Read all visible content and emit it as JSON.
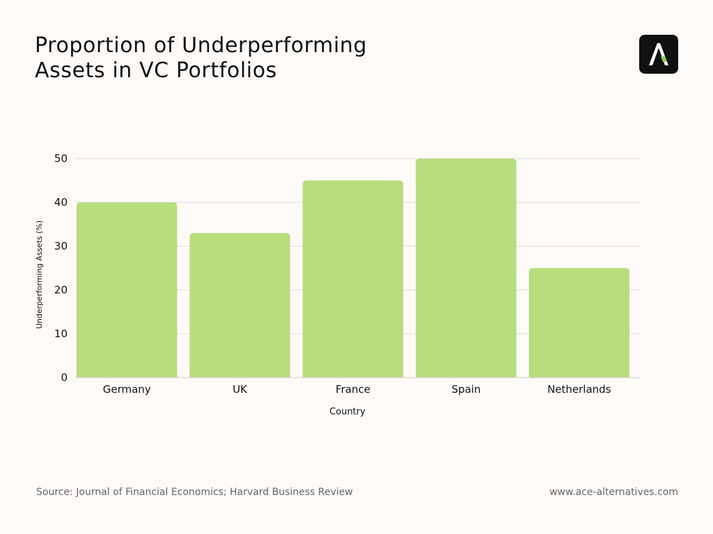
{
  "header": {
    "title_line1": "Proportion of Underperforming",
    "title_line2": "Assets in VC Portfolios",
    "logo_icon": "ace-alternatives-logo-icon"
  },
  "footer": {
    "source": "Source: Journal of Financial Economics; Harvard Business Review",
    "website": "www.ace-alternatives.com"
  },
  "colors": {
    "bar": "#b8dd7c",
    "grid": "#dcdcdc",
    "logo_bg": "#111111",
    "logo_accent": "#8fd14f",
    "background": "#fdfaf8"
  },
  "chart_data": {
    "type": "bar",
    "categories": [
      "Germany",
      "UK",
      "France",
      "Spain",
      "Netherlands"
    ],
    "values": [
      40,
      33,
      45,
      50,
      25
    ],
    "xlabel": "Country",
    "ylabel": "Underperforming Assets (%)",
    "ylim": [
      0,
      50
    ],
    "yticks": [
      0,
      10,
      20,
      30,
      40,
      50
    ],
    "grid": true,
    "legend": "none"
  }
}
